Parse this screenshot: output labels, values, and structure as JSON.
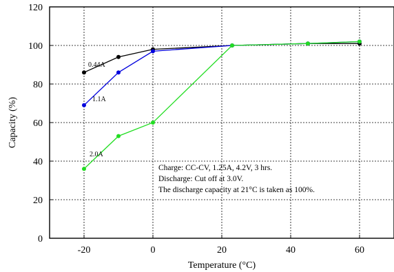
{
  "chart_data": {
    "type": "line",
    "xlabel": "Temperature (°C)",
    "ylabel": "Capacity (%)",
    "xlim": [
      -30,
      70
    ],
    "ylim": [
      0,
      120
    ],
    "xticks": [
      -20,
      0,
      20,
      40,
      60
    ],
    "yticks": [
      0,
      20,
      40,
      60,
      80,
      100,
      120
    ],
    "grid": true,
    "series": [
      {
        "name": "0.44A",
        "color": "#000000",
        "x": [
          -20,
          -10,
          0,
          23,
          45,
          60
        ],
        "y": [
          86,
          94,
          98,
          100,
          101,
          101
        ]
      },
      {
        "name": "1.1A",
        "color": "#0000dd",
        "x": [
          -20,
          -10,
          0,
          23,
          45,
          60
        ],
        "y": [
          69,
          86,
          97,
          100,
          101,
          102
        ]
      },
      {
        "name": "2.0A",
        "color": "#22dd22",
        "x": [
          -20,
          -10,
          0,
          23,
          45,
          60
        ],
        "y": [
          36,
          53,
          60,
          100,
          101,
          102
        ]
      }
    ],
    "annotations": [
      "Charge: CC-CV, 1.25A, 4.2V, 3 hrs.",
      "Discharge: Cut off at 3.0V.",
      "The discharge capacity at 21°C is taken as 100%."
    ]
  }
}
